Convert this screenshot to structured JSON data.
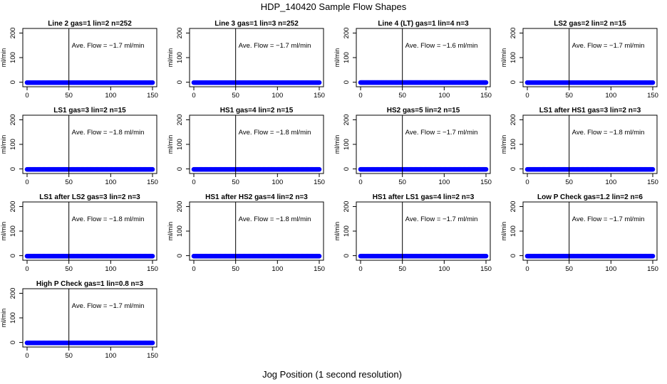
{
  "figure": {
    "title": "HDP_140420  Sample Flow Shapes",
    "xlabel": "Jog Position (1 second resolution)"
  },
  "chart_data": [
    {
      "type": "scatter",
      "title": "Line 2 gas=1 lin=2 n=252",
      "ylabel": "ml/min",
      "annotation": "Ave. Flow = −1.7  ml/min",
      "mean_flow": -1.7,
      "xlim": [
        0,
        150
      ],
      "ylim": [
        -10,
        210
      ],
      "xticks": [
        0,
        50,
        100,
        150
      ],
      "yticks": [
        0,
        100,
        200
      ],
      "vline_x": 50,
      "grid": false,
      "series": [
        {
          "color": "#0000ff",
          "x_range": [
            0,
            150
          ],
          "y": -1.7
        }
      ]
    },
    {
      "type": "scatter",
      "title": "Line 3 gas=1 lin=3 n=252",
      "ylabel": "ml/min",
      "annotation": "Ave. Flow = −1.7  ml/min",
      "mean_flow": -1.7,
      "xlim": [
        0,
        150
      ],
      "ylim": [
        -10,
        210
      ],
      "xticks": [
        0,
        50,
        100,
        150
      ],
      "yticks": [
        0,
        100,
        200
      ],
      "vline_x": 50,
      "grid": false,
      "series": [
        {
          "color": "#0000ff",
          "x_range": [
            0,
            150
          ],
          "y": -1.7
        }
      ]
    },
    {
      "type": "scatter",
      "title": "Line 4 (LT) gas=1 lin=4 n=3",
      "ylabel": "ml/min",
      "annotation": "Ave. Flow = −1.6  ml/min",
      "mean_flow": -1.6,
      "xlim": [
        0,
        150
      ],
      "ylim": [
        -10,
        210
      ],
      "xticks": [
        0,
        50,
        100,
        150
      ],
      "yticks": [
        0,
        100,
        200
      ],
      "vline_x": 50,
      "grid": false,
      "series": [
        {
          "color": "#0000ff",
          "x_range": [
            0,
            150
          ],
          "y": -1.6
        }
      ]
    },
    {
      "type": "scatter",
      "title": "LS2 gas=2 lin=2 n=15",
      "ylabel": "ml/min",
      "annotation": "Ave. Flow = −1.7  ml/min",
      "mean_flow": -1.7,
      "xlim": [
        0,
        150
      ],
      "ylim": [
        -10,
        210
      ],
      "xticks": [
        0,
        50,
        100,
        150
      ],
      "yticks": [
        0,
        100,
        200
      ],
      "vline_x": 50,
      "grid": false,
      "series": [
        {
          "color": "#0000ff",
          "x_range": [
            0,
            150
          ],
          "y": -1.7
        }
      ]
    },
    {
      "type": "scatter",
      "title": "LS1 gas=3 lin=2 n=15",
      "ylabel": "ml/min",
      "annotation": "Ave. Flow = −1.8  ml/min",
      "mean_flow": -1.8,
      "xlim": [
        0,
        150
      ],
      "ylim": [
        -10,
        210
      ],
      "xticks": [
        0,
        50,
        100,
        150
      ],
      "yticks": [
        0,
        100,
        200
      ],
      "vline_x": 50,
      "grid": false,
      "series": [
        {
          "color": "#0000ff",
          "x_range": [
            0,
            150
          ],
          "y": -1.8
        }
      ]
    },
    {
      "type": "scatter",
      "title": "HS1 gas=4 lin=2 n=15",
      "ylabel": "ml/min",
      "annotation": "Ave. Flow = −1.8  ml/min",
      "mean_flow": -1.8,
      "xlim": [
        0,
        150
      ],
      "ylim": [
        -10,
        210
      ],
      "xticks": [
        0,
        50,
        100,
        150
      ],
      "yticks": [
        0,
        100,
        200
      ],
      "vline_x": 50,
      "grid": false,
      "series": [
        {
          "color": "#0000ff",
          "x_range": [
            0,
            150
          ],
          "y": -1.8
        }
      ]
    },
    {
      "type": "scatter",
      "title": "HS2 gas=5 lin=2 n=15",
      "ylabel": "ml/min",
      "annotation": "Ave. Flow = −1.7  ml/min",
      "mean_flow": -1.7,
      "xlim": [
        0,
        150
      ],
      "ylim": [
        -10,
        210
      ],
      "xticks": [
        0,
        50,
        100,
        150
      ],
      "yticks": [
        0,
        100,
        200
      ],
      "vline_x": 50,
      "grid": false,
      "series": [
        {
          "color": "#0000ff",
          "x_range": [
            0,
            150
          ],
          "y": -1.7
        }
      ]
    },
    {
      "type": "scatter",
      "title": "LS1 after HS1 gas=3 lin=2 n=3",
      "ylabel": "ml/min",
      "annotation": "Ave. Flow = −1.8  ml/min",
      "mean_flow": -1.8,
      "xlim": [
        0,
        150
      ],
      "ylim": [
        -10,
        210
      ],
      "xticks": [
        0,
        50,
        100,
        150
      ],
      "yticks": [
        0,
        100,
        200
      ],
      "vline_x": 50,
      "grid": false,
      "series": [
        {
          "color": "#0000ff",
          "x_range": [
            0,
            150
          ],
          "y": -1.8
        }
      ]
    },
    {
      "type": "scatter",
      "title": "LS1 after LS2 gas=3 lin=2 n=3",
      "ylabel": "ml/min",
      "annotation": "Ave. Flow = −1.8  ml/min",
      "mean_flow": -1.8,
      "xlim": [
        0,
        150
      ],
      "ylim": [
        -10,
        210
      ],
      "xticks": [
        0,
        50,
        100,
        150
      ],
      "yticks": [
        0,
        100,
        200
      ],
      "vline_x": 50,
      "grid": false,
      "series": [
        {
          "color": "#0000ff",
          "x_range": [
            0,
            150
          ],
          "y": -1.8
        }
      ]
    },
    {
      "type": "scatter",
      "title": "HS1 after HS2 gas=4 lin=2 n=3",
      "ylabel": "ml/min",
      "annotation": "Ave. Flow = −1.8  ml/min",
      "mean_flow": -1.8,
      "xlim": [
        0,
        150
      ],
      "ylim": [
        -10,
        210
      ],
      "xticks": [
        0,
        50,
        100,
        150
      ],
      "yticks": [
        0,
        100,
        200
      ],
      "vline_x": 50,
      "grid": false,
      "series": [
        {
          "color": "#0000ff",
          "x_range": [
            0,
            150
          ],
          "y": -1.8
        }
      ]
    },
    {
      "type": "scatter",
      "title": "HS1 after LS1 gas=4 lin=2 n=3",
      "ylabel": "ml/min",
      "annotation": "Ave. Flow = −1.7  ml/min",
      "mean_flow": -1.7,
      "xlim": [
        0,
        150
      ],
      "ylim": [
        -10,
        210
      ],
      "xticks": [
        0,
        50,
        100,
        150
      ],
      "yticks": [
        0,
        100,
        200
      ],
      "vline_x": 50,
      "grid": false,
      "series": [
        {
          "color": "#0000ff",
          "x_range": [
            0,
            150
          ],
          "y": -1.7
        }
      ]
    },
    {
      "type": "scatter",
      "title": "Low P Check gas=1.2 lin=2 n=6",
      "ylabel": "ml/min",
      "annotation": "Ave. Flow = −1.7  ml/min",
      "mean_flow": -1.7,
      "xlim": [
        0,
        150
      ],
      "ylim": [
        -10,
        210
      ],
      "xticks": [
        0,
        50,
        100,
        150
      ],
      "yticks": [
        0,
        100,
        200
      ],
      "vline_x": 50,
      "grid": false,
      "series": [
        {
          "color": "#0000ff",
          "x_range": [
            0,
            150
          ],
          "y": -1.7
        }
      ]
    },
    {
      "type": "scatter",
      "title": "High P Check gas=1 lin=0.8 n=3",
      "ylabel": "ml/min",
      "annotation": "Ave. Flow = −1.7  ml/min",
      "mean_flow": -1.7,
      "xlim": [
        0,
        150
      ],
      "ylim": [
        -10,
        210
      ],
      "xticks": [
        0,
        50,
        100,
        150
      ],
      "yticks": [
        0,
        100,
        200
      ],
      "vline_x": 50,
      "grid": false,
      "series": [
        {
          "color": "#0000ff",
          "x_range": [
            0,
            150
          ],
          "y": -1.7
        }
      ]
    }
  ]
}
